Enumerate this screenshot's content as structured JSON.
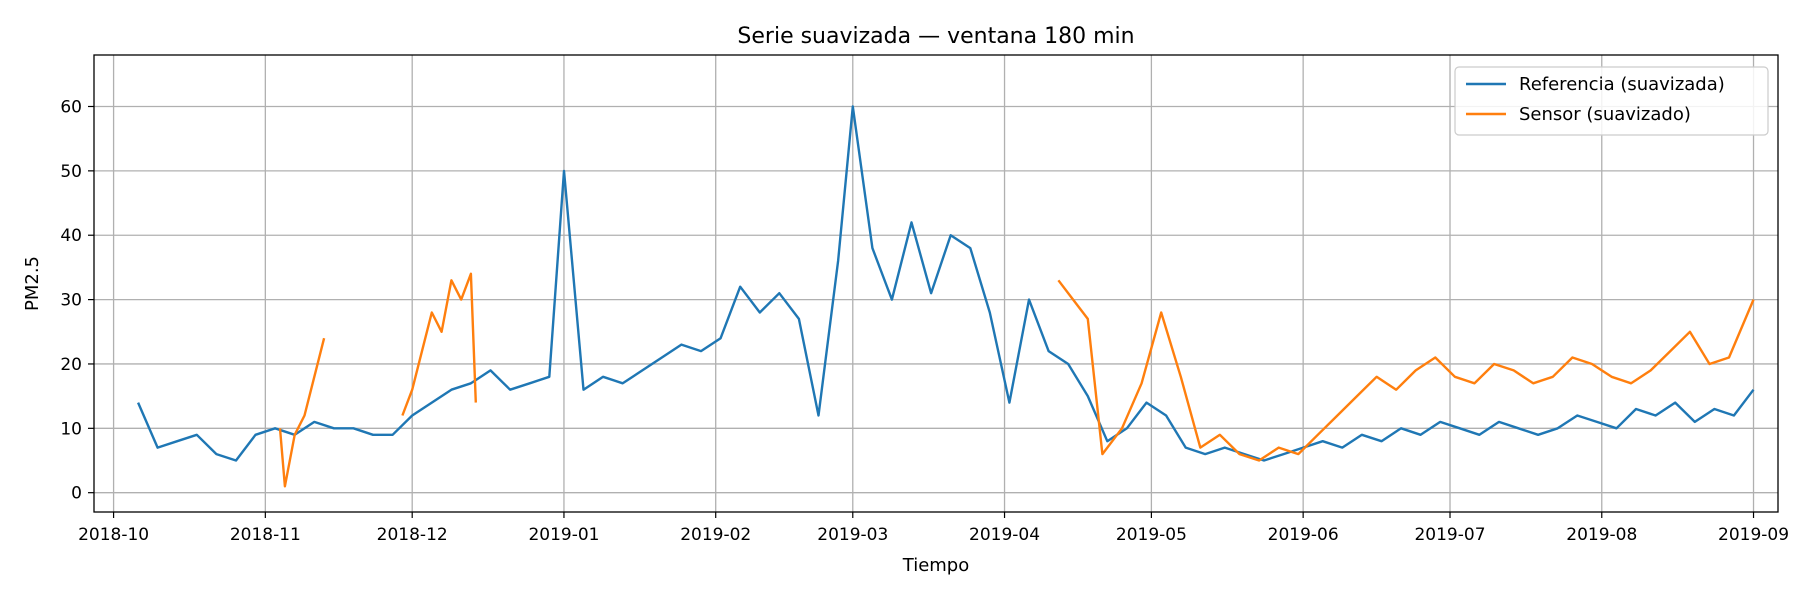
{
  "chart_data": {
    "type": "line",
    "title": "Serie suavizada — ventana 180 min",
    "xlabel": "Tiempo",
    "ylabel": "PM2.5",
    "x_axis_type": "date",
    "xlim": [
      "2018-09-27",
      "2019-09-06"
    ],
    "ylim": [
      -3,
      68
    ],
    "grid": true,
    "legend_position": "top-right",
    "x_ticks": [
      "2018-10",
      "2018-11",
      "2018-12",
      "2019-01",
      "2019-02",
      "2019-03",
      "2019-04",
      "2019-05",
      "2019-06",
      "2019-07",
      "2019-08",
      "2019-09"
    ],
    "y_ticks": [
      0,
      10,
      20,
      30,
      40,
      50,
      60
    ],
    "series": [
      {
        "name": "Referencia (suavizada)",
        "color": "#1f77b4",
        "points": [
          [
            "2018-10-06",
            14
          ],
          [
            "2018-10-10",
            7
          ],
          [
            "2018-10-14",
            8
          ],
          [
            "2018-10-18",
            9
          ],
          [
            "2018-10-22",
            6
          ],
          [
            "2018-10-26",
            5
          ],
          [
            "2018-10-30",
            9
          ],
          [
            "2018-11-03",
            10
          ],
          [
            "2018-11-07",
            9
          ],
          [
            "2018-11-11",
            11
          ],
          [
            "2018-11-15",
            10
          ],
          [
            "2018-11-19",
            10
          ],
          [
            "2018-11-23",
            9
          ],
          [
            "2018-11-27",
            9
          ],
          [
            "2018-12-01",
            12
          ],
          [
            "2018-12-05",
            14
          ],
          [
            "2018-12-09",
            16
          ],
          [
            "2018-12-13",
            17
          ],
          [
            "2018-12-17",
            19
          ],
          [
            "2018-12-21",
            16
          ],
          [
            "2018-12-25",
            17
          ],
          [
            "2018-12-29",
            18
          ],
          [
            "2019-01-01",
            50
          ],
          [
            "2019-01-05",
            16
          ],
          [
            "2019-01-09",
            18
          ],
          [
            "2019-01-13",
            17
          ],
          [
            "2019-01-17",
            19
          ],
          [
            "2019-01-21",
            21
          ],
          [
            "2019-01-25",
            23
          ],
          [
            "2019-01-29",
            22
          ],
          [
            "2019-02-02",
            24
          ],
          [
            "2019-02-06",
            32
          ],
          [
            "2019-02-10",
            28
          ],
          [
            "2019-02-14",
            31
          ],
          [
            "2019-02-18",
            27
          ],
          [
            "2019-02-22",
            12
          ],
          [
            "2019-02-26",
            36
          ],
          [
            "2019-03-01",
            60
          ],
          [
            "2019-03-05",
            38
          ],
          [
            "2019-03-09",
            30
          ],
          [
            "2019-03-13",
            42
          ],
          [
            "2019-03-17",
            31
          ],
          [
            "2019-03-21",
            40
          ],
          [
            "2019-03-25",
            38
          ],
          [
            "2019-03-29",
            28
          ],
          [
            "2019-04-02",
            14
          ],
          [
            "2019-04-06",
            30
          ],
          [
            "2019-04-10",
            22
          ],
          [
            "2019-04-14",
            20
          ],
          [
            "2019-04-18",
            15
          ],
          [
            "2019-04-22",
            8
          ],
          [
            "2019-04-26",
            10
          ],
          [
            "2019-04-30",
            14
          ],
          [
            "2019-05-04",
            12
          ],
          [
            "2019-05-08",
            7
          ],
          [
            "2019-05-12",
            6
          ],
          [
            "2019-05-16",
            7
          ],
          [
            "2019-05-20",
            6
          ],
          [
            "2019-05-24",
            5
          ],
          [
            "2019-05-28",
            6
          ],
          [
            "2019-06-01",
            7
          ],
          [
            "2019-06-05",
            8
          ],
          [
            "2019-06-09",
            7
          ],
          [
            "2019-06-13",
            9
          ],
          [
            "2019-06-17",
            8
          ],
          [
            "2019-06-21",
            10
          ],
          [
            "2019-06-25",
            9
          ],
          [
            "2019-06-29",
            11
          ],
          [
            "2019-07-03",
            10
          ],
          [
            "2019-07-07",
            9
          ],
          [
            "2019-07-11",
            11
          ],
          [
            "2019-07-15",
            10
          ],
          [
            "2019-07-19",
            9
          ],
          [
            "2019-07-23",
            10
          ],
          [
            "2019-07-27",
            12
          ],
          [
            "2019-07-31",
            11
          ],
          [
            "2019-08-04",
            10
          ],
          [
            "2019-08-08",
            13
          ],
          [
            "2019-08-12",
            12
          ],
          [
            "2019-08-16",
            14
          ],
          [
            "2019-08-20",
            11
          ],
          [
            "2019-08-24",
            13
          ],
          [
            "2019-08-28",
            12
          ],
          [
            "2019-09-01",
            16
          ]
        ]
      },
      {
        "name": "Sensor (suavizado)",
        "color": "#ff7f0e",
        "points": [
          [
            "2018-11-04",
            10
          ],
          [
            "2018-11-05",
            1
          ],
          [
            "2018-11-07",
            9
          ],
          [
            "2018-11-09",
            12
          ],
          [
            "2018-11-13",
            24
          ],
          [
            "2018-11-29",
            12
          ],
          [
            "2018-12-01",
            16
          ],
          [
            "2018-12-03",
            22
          ],
          [
            "2018-12-05",
            28
          ],
          [
            "2018-12-07",
            25
          ],
          [
            "2018-12-09",
            33
          ],
          [
            "2018-12-11",
            30
          ],
          [
            "2018-12-13",
            34
          ],
          [
            "2018-12-14",
            14
          ],
          [
            "2019-04-12",
            33
          ],
          [
            "2019-04-15",
            30
          ],
          [
            "2019-04-18",
            27
          ],
          [
            "2019-04-21",
            6
          ],
          [
            "2019-04-25",
            10
          ],
          [
            "2019-04-29",
            17
          ],
          [
            "2019-05-03",
            28
          ],
          [
            "2019-05-07",
            18
          ],
          [
            "2019-05-11",
            7
          ],
          [
            "2019-05-15",
            9
          ],
          [
            "2019-05-19",
            6
          ],
          [
            "2019-05-23",
            5
          ],
          [
            "2019-05-27",
            7
          ],
          [
            "2019-05-31",
            6
          ],
          [
            "2019-06-04",
            9
          ],
          [
            "2019-06-08",
            12
          ],
          [
            "2019-06-12",
            15
          ],
          [
            "2019-06-16",
            18
          ],
          [
            "2019-06-20",
            16
          ],
          [
            "2019-06-24",
            19
          ],
          [
            "2019-06-28",
            21
          ],
          [
            "2019-07-02",
            18
          ],
          [
            "2019-07-06",
            17
          ],
          [
            "2019-07-10",
            20
          ],
          [
            "2019-07-14",
            19
          ],
          [
            "2019-07-18",
            17
          ],
          [
            "2019-07-22",
            18
          ],
          [
            "2019-07-26",
            21
          ],
          [
            "2019-07-30",
            20
          ],
          [
            "2019-08-03",
            18
          ],
          [
            "2019-08-07",
            17
          ],
          [
            "2019-08-11",
            19
          ],
          [
            "2019-08-15",
            22
          ],
          [
            "2019-08-19",
            25
          ],
          [
            "2019-08-23",
            20
          ],
          [
            "2019-08-27",
            21
          ],
          [
            "2019-09-01",
            30
          ]
        ]
      }
    ]
  }
}
